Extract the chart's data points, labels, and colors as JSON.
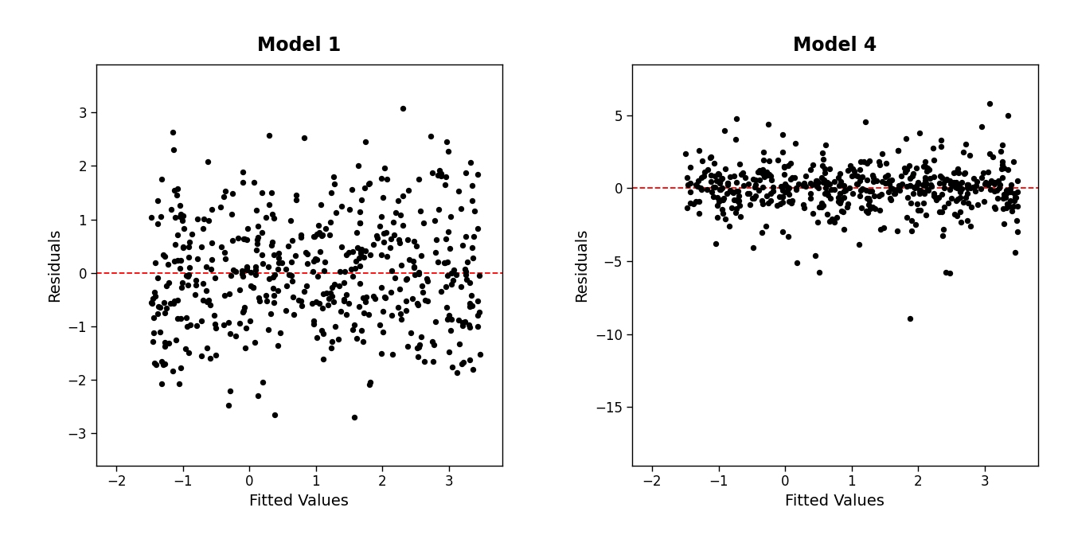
{
  "title1": "Model 1",
  "title2": "Model 4",
  "xlabel": "Fitted Values",
  "ylabel": "Residuals",
  "xlim": [
    -2.3,
    3.8
  ],
  "ylim1": [
    -3.6,
    3.9
  ],
  "ylim2": [
    -19.0,
    8.5
  ],
  "xticks": [
    -2,
    -1,
    0,
    1,
    2,
    3
  ],
  "yticks1": [
    -3,
    -2,
    -1,
    0,
    1,
    2,
    3
  ],
  "yticks2": [
    -15,
    -10,
    -5,
    0,
    5
  ],
  "hline_y": 0,
  "hline_color": "#FF0000",
  "point_color": "#000000",
  "background_color": "#FFFFFF",
  "point_size": 28,
  "point_alpha": 1.0,
  "seed1": 42,
  "seed2": 99,
  "n_points": 500,
  "title_fontsize": 17,
  "label_fontsize": 14,
  "tick_fontsize": 12,
  "fig_width": 13.44,
  "fig_height": 6.72
}
